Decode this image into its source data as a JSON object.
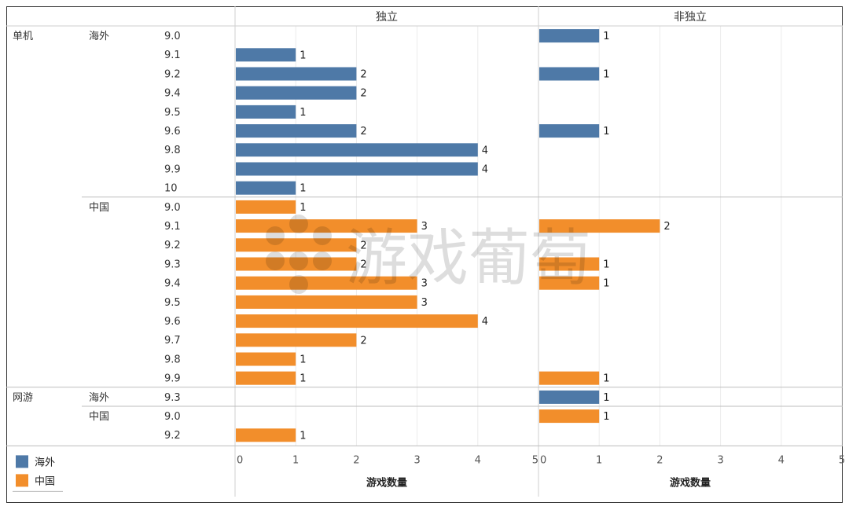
{
  "chart_data": {
    "type": "bar",
    "orientation": "horizontal",
    "columns": [
      "独立",
      "非独立"
    ],
    "xlabel": "游戏数量",
    "xlim": [
      0,
      5
    ],
    "xticks": [
      0,
      1,
      2,
      3,
      4,
      5
    ],
    "grid": true,
    "legend_position": "bottom-left",
    "series": [
      {
        "name": "海外",
        "color": "#4E79A7"
      },
      {
        "name": "中国",
        "color": "#F28E2B"
      }
    ],
    "groups": [
      {
        "platform": "单机",
        "region": "海外",
        "color": "#4E79A7",
        "rows": [
          {
            "score": "9.0",
            "values": [
              null,
              1
            ]
          },
          {
            "score": "9.1",
            "values": [
              1,
              null
            ]
          },
          {
            "score": "9.2",
            "values": [
              2,
              1
            ]
          },
          {
            "score": "9.4",
            "values": [
              2,
              null
            ]
          },
          {
            "score": "9.5",
            "values": [
              1,
              null
            ]
          },
          {
            "score": "9.6",
            "values": [
              2,
              1
            ]
          },
          {
            "score": "9.8",
            "values": [
              4,
              null
            ]
          },
          {
            "score": "9.9",
            "values": [
              4,
              null
            ]
          },
          {
            "score": "10",
            "values": [
              1,
              null
            ]
          }
        ]
      },
      {
        "platform": "",
        "region": "中国",
        "color": "#F28E2B",
        "rows": [
          {
            "score": "9.0",
            "values": [
              1,
              null
            ]
          },
          {
            "score": "9.1",
            "values": [
              3,
              2
            ]
          },
          {
            "score": "9.2",
            "values": [
              2,
              null
            ]
          },
          {
            "score": "9.3",
            "values": [
              2,
              1
            ]
          },
          {
            "score": "9.4",
            "values": [
              3,
              1
            ]
          },
          {
            "score": "9.5",
            "values": [
              3,
              null
            ]
          },
          {
            "score": "9.6",
            "values": [
              4,
              null
            ]
          },
          {
            "score": "9.7",
            "values": [
              2,
              null
            ]
          },
          {
            "score": "9.8",
            "values": [
              1,
              null
            ]
          },
          {
            "score": "9.9",
            "values": [
              1,
              1
            ]
          }
        ]
      },
      {
        "platform": "网游",
        "region": "海外",
        "color": "#4E79A7",
        "rows": [
          {
            "score": "9.3",
            "values": [
              null,
              1
            ]
          }
        ]
      },
      {
        "platform": "",
        "region": "中国",
        "color": "#F28E2B",
        "rows": [
          {
            "score": "9.0",
            "values": [
              null,
              1
            ]
          },
          {
            "score": "9.2",
            "values": [
              1,
              null
            ]
          }
        ]
      }
    ]
  },
  "watermark": "游戏葡萄"
}
